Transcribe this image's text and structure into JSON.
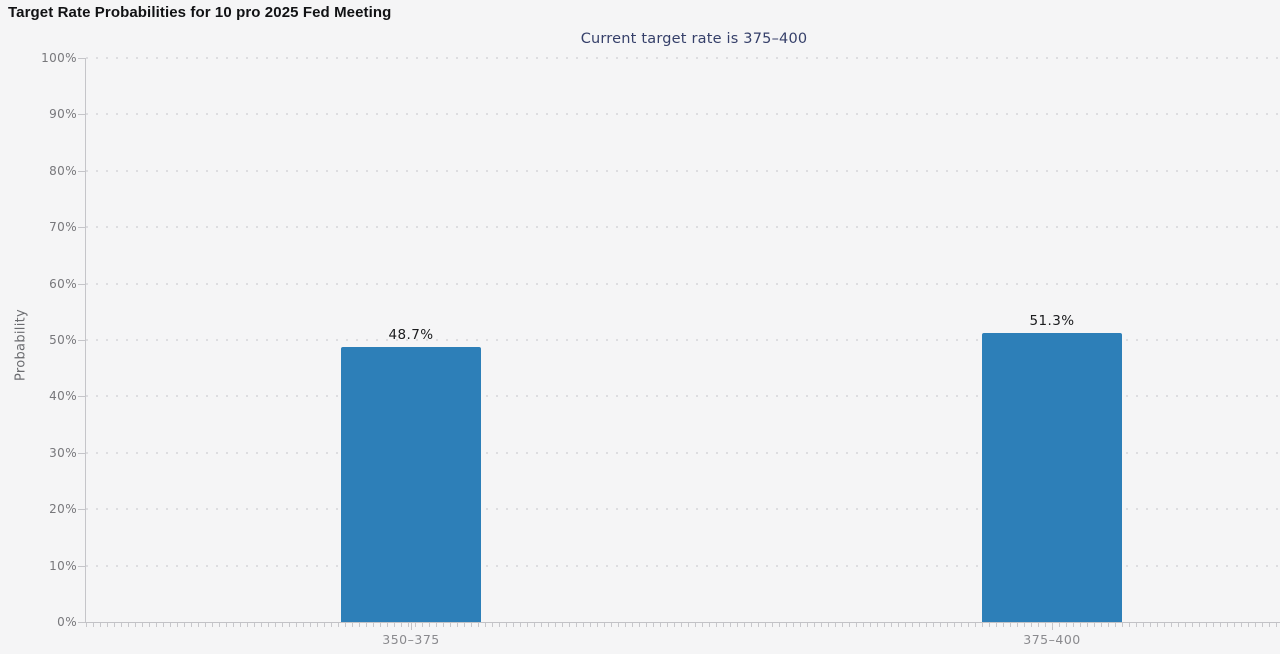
{
  "chart_data": {
    "type": "bar",
    "title": "Target Rate Probabilities for 10 pro 2025 Fed Meeting",
    "subtitle": "Current target rate is 375–400",
    "ylabel": "Probability",
    "xlabel": "",
    "categories": [
      "350–375",
      "375–400"
    ],
    "values": [
      48.7,
      51.3
    ],
    "value_labels": [
      "48.7%",
      "51.3%"
    ],
    "y_ticks": [
      "0%",
      "10%",
      "20%",
      "30%",
      "40%",
      "50%",
      "60%",
      "70%",
      "80%",
      "90%",
      "100%"
    ],
    "ylim": [
      0,
      100
    ],
    "grid": "dotted-horizontal",
    "legend_position": "none",
    "bar_color": "#2d7fb8",
    "subtitle_color": "#36406a",
    "background_color": "#f5f5f6"
  }
}
